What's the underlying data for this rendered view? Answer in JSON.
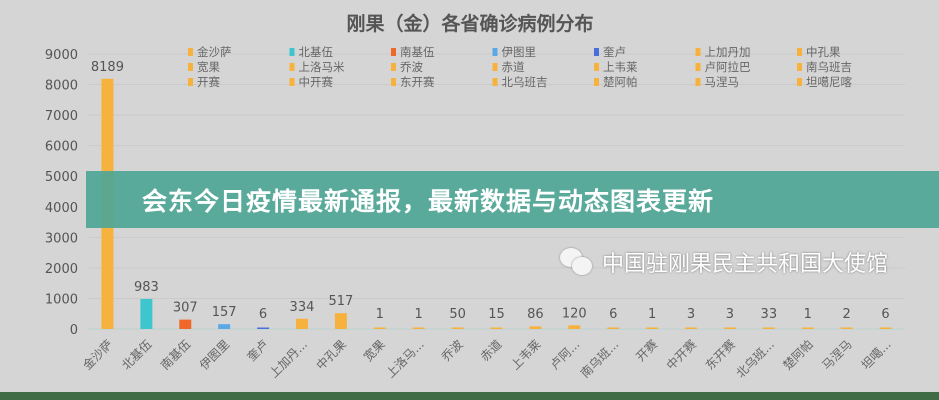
{
  "chart_data": {
    "type": "bar",
    "title": "刚果（金）各省确诊病例分布",
    "categories": [
      "金沙萨",
      "北基伍",
      "南基伍",
      "伊图里",
      "奎卢",
      "上加丹加",
      "中孔果",
      "宽果",
      "上洛马米",
      "乔波",
      "赤道",
      "上韦莱",
      "卢阿拉巴",
      "南乌班吉",
      "开赛",
      "中开赛",
      "东开赛",
      "北乌班吉",
      "楚阿帕",
      "马涅马",
      "坦噶尼喀"
    ],
    "axis_labels": [
      "金沙萨",
      "北基伍",
      "南基伍",
      "伊图里",
      "奎卢",
      "上加丹...",
      "中孔果",
      "宽果",
      "上洛马...",
      "乔波",
      "赤道",
      "上韦莱",
      "卢阿...",
      "南乌班...",
      "开赛",
      "中开赛",
      "东开赛",
      "北乌班...",
      "楚阿帕",
      "马涅马",
      "坦噶..."
    ],
    "values": [
      8189,
      983,
      307,
      157,
      6,
      334,
      517,
      1,
      1,
      50,
      15,
      86,
      120,
      6,
      1,
      3,
      3,
      33,
      1,
      2,
      6
    ],
    "colors": [
      "#f6b23c",
      "#3ec6cf",
      "#f0672a",
      "#5ba8e6",
      "#4a6fdc",
      "#f6b23c",
      "#f6b23c",
      "#f6b23c",
      "#f6b23c",
      "#f6b23c",
      "#f6b23c",
      "#f6b23c",
      "#f6b23c",
      "#f6b23c",
      "#f6b23c",
      "#f6b23c",
      "#f6b23c",
      "#f6b23c",
      "#f6b23c",
      "#f6b23c",
      "#f6b23c"
    ],
    "ylim": [
      0,
      9000
    ],
    "yticks": [
      0,
      1000,
      2000,
      3000,
      4000,
      5000,
      6000,
      7000,
      8000,
      9000
    ],
    "grid": true,
    "legend": "top",
    "xlabel": "",
    "ylabel": ""
  },
  "banner": {
    "headline": "会东今日疫情最新通报，最新数据与动态图表更新"
  },
  "watermark": {
    "text": "中国驻刚果民主共和国大使馆",
    "icon": "wechat-icon"
  }
}
